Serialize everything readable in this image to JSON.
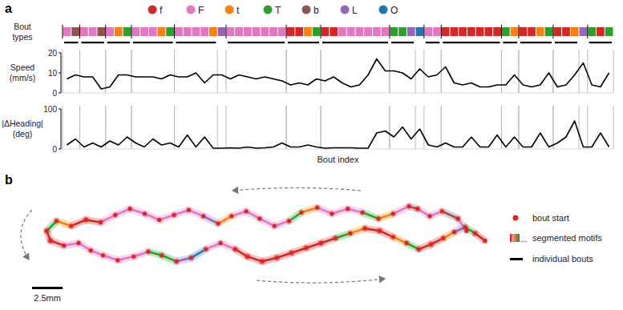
{
  "panel_labels": [
    "a",
    "b"
  ],
  "chart_data": [
    {
      "type": "categorical_strip",
      "ylabel": "Bout types",
      "legend_items": [
        {
          "name": "f",
          "color": "#d62728"
        },
        {
          "name": "F",
          "color": "#e377c2"
        },
        {
          "name": "t",
          "color": "#ff7f0e"
        },
        {
          "name": "T",
          "color": "#2ca02c"
        },
        {
          "name": "b",
          "color": "#8c564b"
        },
        {
          "name": "L",
          "color": "#9467bd"
        },
        {
          "name": "O",
          "color": "#1f77b4"
        }
      ],
      "values": [
        "F",
        "b",
        "F",
        "F",
        "b",
        "F",
        "t",
        "T",
        "F",
        "F",
        "F",
        "t",
        "T",
        "F",
        "F",
        "F",
        "F",
        "t",
        "L",
        "F",
        "F",
        "F",
        "F",
        "F",
        "F",
        "F",
        "f",
        "f",
        "t",
        "T",
        "f",
        "f",
        "F",
        "F",
        "F",
        "F",
        "F",
        "F",
        "T",
        "T",
        "L",
        "O",
        "F",
        "F",
        "f",
        "f",
        "f",
        "f",
        "f",
        "f",
        "f",
        "T",
        "t",
        "f",
        "f",
        "t",
        "T",
        "f",
        "f",
        "t",
        "L",
        "T",
        "f",
        "T"
      ],
      "motifs": [
        [
          0,
          1
        ],
        [
          2,
          4
        ],
        [
          5,
          7
        ],
        [
          8,
          12
        ],
        [
          13,
          17
        ],
        [
          19,
          25
        ],
        [
          26,
          29
        ],
        [
          30,
          37
        ],
        [
          38,
          40
        ],
        [
          42,
          43
        ],
        [
          44,
          50
        ],
        [
          51,
          52
        ],
        [
          53,
          56
        ],
        [
          57,
          59
        ],
        [
          61,
          63
        ]
      ],
      "xlim": [
        -0.5,
        63.5
      ]
    },
    {
      "type": "line",
      "ylabel": "Speed (mm/s)",
      "color": "#000000",
      "x": [
        0,
        1,
        2,
        3,
        4,
        5,
        6,
        7,
        8,
        9,
        10,
        11,
        12,
        13,
        14,
        15,
        16,
        17,
        18,
        19,
        20,
        21,
        22,
        23,
        24,
        25,
        26,
        27,
        28,
        29,
        30,
        31,
        32,
        33,
        34,
        35,
        36,
        37,
        38,
        39,
        40,
        41,
        42,
        43,
        44,
        45,
        46,
        47,
        48,
        49,
        50,
        51,
        52,
        53,
        54,
        55,
        56,
        57,
        58,
        59,
        60,
        61,
        62,
        63
      ],
      "values": [
        7,
        9,
        8,
        8,
        2,
        3,
        9,
        9,
        8,
        8,
        8,
        7,
        9,
        8,
        8,
        10,
        5,
        9,
        9,
        7,
        9,
        8,
        7,
        8,
        7,
        6,
        4,
        5,
        4,
        7,
        6,
        8,
        5,
        3,
        4,
        9,
        17,
        11,
        11,
        10,
        7,
        12,
        8,
        9,
        13,
        5,
        4,
        5,
        3,
        3,
        4,
        4,
        9,
        4,
        3,
        4,
        10,
        3,
        4,
        9,
        15,
        4,
        3,
        10
      ],
      "xlim": [
        -0.5,
        63.5
      ],
      "ylim": [
        0,
        20
      ],
      "yticks": [
        0,
        10,
        20
      ],
      "tick_labels": "y"
    },
    {
      "type": "line",
      "ylabel": "|ΔHeading| (deg)",
      "xlabel": "Bout index",
      "color": "#000000",
      "x": [
        0,
        1,
        2,
        3,
        4,
        5,
        6,
        7,
        8,
        9,
        10,
        11,
        12,
        13,
        14,
        15,
        16,
        17,
        18,
        19,
        20,
        21,
        22,
        23,
        24,
        25,
        26,
        27,
        28,
        29,
        30,
        31,
        32,
        33,
        34,
        35,
        36,
        37,
        38,
        39,
        40,
        41,
        42,
        43,
        44,
        45,
        46,
        47,
        48,
        49,
        50,
        51,
        52,
        53,
        54,
        55,
        56,
        57,
        58,
        59,
        60,
        61,
        62,
        63
      ],
      "values": [
        10,
        25,
        5,
        15,
        5,
        20,
        10,
        30,
        15,
        5,
        25,
        10,
        15,
        5,
        35,
        5,
        30,
        2,
        2,
        3,
        2,
        5,
        2,
        3,
        5,
        15,
        5,
        5,
        10,
        5,
        2,
        3,
        3,
        3,
        2,
        2,
        40,
        45,
        30,
        55,
        25,
        50,
        10,
        5,
        15,
        5,
        5,
        30,
        5,
        5,
        35,
        5,
        30,
        5,
        5,
        40,
        5,
        15,
        30,
        70,
        5,
        5,
        40,
        5
      ],
      "xlim": [
        -0.5,
        63.5
      ],
      "ylim": [
        0,
        100
      ],
      "yticks": [
        0,
        100
      ],
      "tick_labels": "y"
    },
    {
      "type": "trajectory",
      "marker": "dot",
      "color": "#e8201e",
      "tick_labels": false,
      "x": [
        35.5,
        34.8,
        33.5,
        32.5,
        31.5,
        30.8,
        29.5,
        28.3,
        27.0,
        25.8,
        24.5,
        23.3,
        22.0,
        21.0,
        19.8,
        18.6,
        17.5,
        16.3,
        15.2,
        14.0,
        12.8,
        11.6,
        10.4,
        9.2,
        8.0,
        6.8,
        5.6,
        4.4,
        3.2,
        2.0,
        1.2,
        1.5,
        2.6,
        3.8,
        4.8,
        5.8,
        7.0,
        8.3,
        9.5,
        10.6,
        11.8,
        13.0,
        14.2,
        15.4,
        16.6,
        17.6,
        18.8,
        20.0,
        21.2,
        22.4,
        23.6,
        24.8,
        26.0,
        27.2,
        28.4,
        29.5,
        30.6,
        31.6,
        32.6,
        33.6,
        34.5,
        35.4,
        36.2,
        37.0
      ],
      "y": [
        3.0,
        4.0,
        4.6,
        4.2,
        4.8,
        5.0,
        4.4,
        4.0,
        4.5,
        4.8,
        4.4,
        4.9,
        4.5,
        3.8,
        3.4,
        4.0,
        4.6,
        4.2,
        3.6,
        4.2,
        4.7,
        4.3,
        3.9,
        4.4,
        4.8,
        4.3,
        3.7,
        3.9,
        3.4,
        3.8,
        3.0,
        2.2,
        1.8,
        2.0,
        1.4,
        1.0,
        0.6,
        0.9,
        1.3,
        1.0,
        0.5,
        0.8,
        1.5,
        2.0,
        1.5,
        0.9,
        0.5,
        0.8,
        1.2,
        1.6,
        2.0,
        2.4,
        2.8,
        3.2,
        3.0,
        2.5,
        2.0,
        1.5,
        1.9,
        2.4,
        2.9,
        3.3,
        2.8,
        2.2
      ],
      "xlim": [
        0,
        38
      ],
      "ylim": [
        0,
        5.5
      ],
      "scale_bar": {
        "value": 2.5,
        "label": "2.5mm"
      },
      "key_items": {
        "bout_start": "bout start",
        "ellipsis": "...",
        "segmented_motifs": "segmented motifs",
        "individual_bouts": "individual bouts"
      }
    }
  ]
}
